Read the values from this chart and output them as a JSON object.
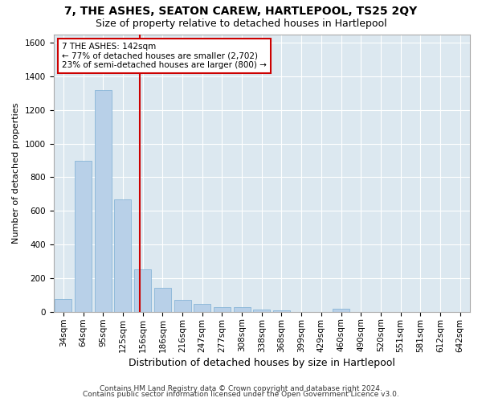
{
  "title": "7, THE ASHES, SEATON CAREW, HARTLEPOOL, TS25 2QY",
  "subtitle": "Size of property relative to detached houses in Hartlepool",
  "xlabel": "Distribution of detached houses by size in Hartlepool",
  "ylabel": "Number of detached properties",
  "bar_color": "#b8d0e8",
  "bar_edge_color": "#7aaed4",
  "background_color": "#dce8f0",
  "grid_color": "#ffffff",
  "categories": [
    "34sqm",
    "64sqm",
    "95sqm",
    "125sqm",
    "156sqm",
    "186sqm",
    "216sqm",
    "247sqm",
    "277sqm",
    "308sqm",
    "338sqm",
    "368sqm",
    "399sqm",
    "429sqm",
    "460sqm",
    "490sqm",
    "520sqm",
    "551sqm",
    "581sqm",
    "612sqm",
    "642sqm"
  ],
  "values": [
    75,
    895,
    1320,
    670,
    250,
    140,
    70,
    48,
    28,
    28,
    15,
    10,
    0,
    0,
    20,
    0,
    0,
    0,
    0,
    0,
    0
  ],
  "ylim": [
    0,
    1650
  ],
  "yticks": [
    0,
    200,
    400,
    600,
    800,
    1000,
    1200,
    1400,
    1600
  ],
  "property_line_x": 3.85,
  "annotation_line1": "7 THE ASHES: 142sqm",
  "annotation_line2": "← 77% of detached houses are smaller (2,702)",
  "annotation_line3": "23% of semi-detached houses are larger (800) →",
  "annotation_box_color": "#ffffff",
  "annotation_box_edge_color": "#cc0000",
  "line_color": "#cc0000",
  "footer_line1": "Contains HM Land Registry data © Crown copyright and database right 2024.",
  "footer_line2": "Contains public sector information licensed under the Open Government Licence v3.0.",
  "title_fontsize": 10,
  "subtitle_fontsize": 9,
  "xlabel_fontsize": 9,
  "ylabel_fontsize": 8,
  "tick_fontsize": 7.5,
  "annotation_fontsize": 7.5,
  "footer_fontsize": 6.5
}
